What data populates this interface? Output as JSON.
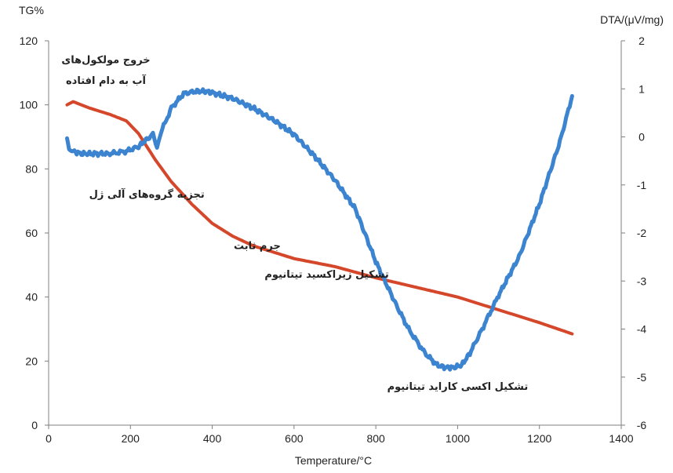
{
  "chart_data": {
    "type": "line",
    "left_axis_title": "TG%",
    "right_axis_title": "DTA/(μV/mg)",
    "xlabel": "Temperature/°C",
    "xlim": [
      0,
      1400
    ],
    "ylim_left": [
      0,
      120
    ],
    "ylim_right": [
      -6,
      2
    ],
    "x_ticks": [
      "0",
      "200",
      "400",
      "600",
      "800",
      "1000",
      "1200",
      "1400"
    ],
    "y_ticks_left": [
      "0",
      "20",
      "40",
      "60",
      "80",
      "100",
      "120"
    ],
    "y_ticks_right": [
      "-6",
      "-5",
      "-4",
      "-3",
      "-2",
      "-1",
      "0",
      "1",
      "2"
    ],
    "grid": false,
    "series": [
      {
        "color": "#d4472b",
        "axis": "left",
        "x": [
          45,
          60,
          100,
          150,
          190,
          220,
          260,
          300,
          350,
          400,
          450,
          500,
          550,
          600,
          700,
          800,
          900,
          1000,
          1100,
          1200,
          1280
        ],
        "values": [
          100,
          101,
          99,
          97,
          95,
          91,
          83,
          76,
          69,
          63,
          59,
          56,
          54,
          52,
          49.5,
          46,
          43,
          40,
          36,
          32,
          28.5
        ]
      },
      {
        "color": "#3c84cf",
        "axis": "right",
        "x": [
          45,
          50,
          60,
          80,
          100,
          150,
          190,
          220,
          240,
          255,
          265,
          275,
          300,
          330,
          360,
          380,
          400,
          450,
          500,
          550,
          600,
          650,
          700,
          750,
          800,
          850,
          880,
          920,
          950,
          970,
          990,
          1010,
          1030,
          1060,
          1100,
          1150,
          1200,
          1250,
          1280
        ],
        "values": [
          -0.05,
          -0.25,
          -0.3,
          -0.35,
          -0.35,
          -0.35,
          -0.3,
          -0.2,
          -0.05,
          0.05,
          -0.2,
          0.1,
          0.6,
          0.9,
          0.95,
          0.95,
          0.92,
          0.8,
          0.6,
          0.35,
          0.05,
          -0.4,
          -0.9,
          -1.5,
          -2.6,
          -3.5,
          -4.0,
          -4.5,
          -4.75,
          -4.8,
          -4.8,
          -4.75,
          -4.5,
          -4.0,
          -3.3,
          -2.5,
          -1.4,
          -0.1,
          0.85
        ]
      }
    ],
    "annotations": [
      {
        "text": "خروج مولکول‌های",
        "x": 140,
        "y": 113
      },
      {
        "text": "آب به دام افتاده",
        "x": 140,
        "y": 106.5
      },
      {
        "text": "تجزیه گروه‌های آلی ژل",
        "x": 240,
        "y": 71
      },
      {
        "text": "جرم ثابت",
        "x": 510,
        "y": 55
      },
      {
        "text": "تشکیل زیراکسید تیتانیوم",
        "x": 680,
        "y": 46
      },
      {
        "text": "تشکیل اکسی کاراید تیتانیوم",
        "x": 1000,
        "y": 11
      }
    ]
  }
}
